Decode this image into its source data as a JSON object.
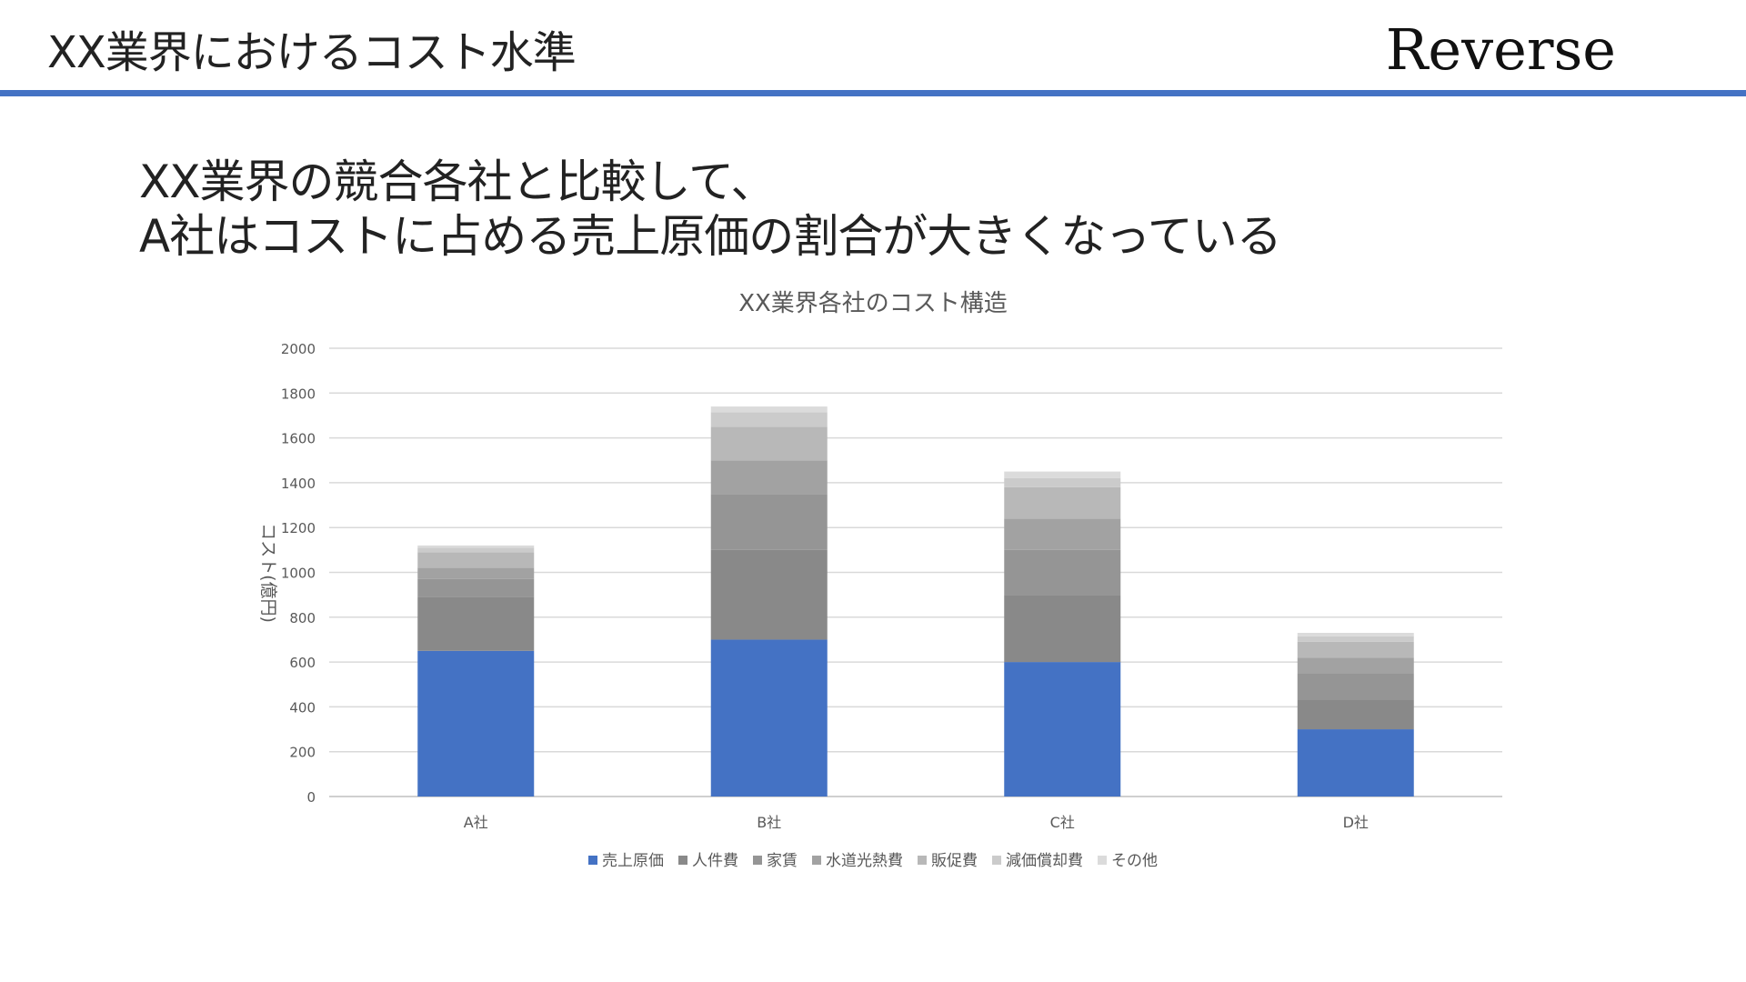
{
  "header": {
    "title": "XX業界におけるコスト水準",
    "brand": "Reverse"
  },
  "headline": {
    "line1": "XX業界の競合各社と比較して、",
    "line2": "A社はコストに占める売上原価の割合が大きくなっている"
  },
  "colors": {
    "accent": "#4472C4",
    "rule": "#4472C4"
  },
  "chart_data": {
    "type": "bar",
    "stacked": true,
    "title": "XX業界各社のコスト構造",
    "xlabel": "",
    "ylabel": "コスト(億円)",
    "ylim": [
      0,
      2000
    ],
    "yticks": [
      0,
      200,
      400,
      600,
      800,
      1000,
      1200,
      1400,
      1600,
      1800,
      2000
    ],
    "grid": true,
    "legend_position": "bottom",
    "categories": [
      "A社",
      "B社",
      "C社",
      "D社"
    ],
    "series": [
      {
        "name": "売上原価",
        "color": "#4472C4",
        "values": [
          650,
          700,
          600,
          300
        ]
      },
      {
        "name": "人件費",
        "color": "#898989",
        "values": [
          240,
          400,
          300,
          130
        ]
      },
      {
        "name": "家賃",
        "color": "#959595",
        "values": [
          80,
          250,
          200,
          120
        ]
      },
      {
        "name": "水道光熱費",
        "color": "#a2a2a2",
        "values": [
          50,
          150,
          140,
          70
        ]
      },
      {
        "name": "販促費",
        "color": "#b8b8b8",
        "values": [
          70,
          150,
          140,
          70
        ]
      },
      {
        "name": "減価償却費",
        "color": "#cbcbcb",
        "values": [
          20,
          65,
          40,
          25
        ]
      },
      {
        "name": "その他",
        "color": "#dbdbdb",
        "values": [
          10,
          25,
          30,
          15
        ]
      }
    ]
  }
}
